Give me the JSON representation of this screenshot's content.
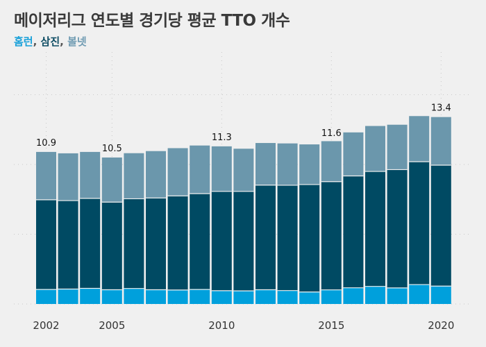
{
  "title": "메이저리그 연도별 경기당 평균 TTO 개수",
  "subtitle": {
    "parts": [
      {
        "text": "홈런",
        "color": "#159fd8"
      },
      {
        "text": ", ",
        "color": "#555555"
      },
      {
        "text": "삼진",
        "color": "#0d4c63"
      },
      {
        "text": ", ",
        "color": "#555555"
      },
      {
        "text": "볼넷",
        "color": "#6f9bb2"
      }
    ]
  },
  "chart_data": {
    "type": "bar",
    "stacked": true,
    "categories": [
      2002,
      2003,
      2004,
      2005,
      2006,
      2007,
      2008,
      2009,
      2010,
      2011,
      2012,
      2013,
      2014,
      2015,
      2016,
      2017,
      2018,
      2019,
      2020
    ],
    "series": [
      {
        "name": "홈런",
        "color": "#00a0dc",
        "values": [
          1.04,
          1.07,
          1.12,
          1.02,
          1.11,
          1.02,
          1.0,
          1.04,
          0.95,
          0.94,
          1.02,
          0.96,
          0.86,
          1.01,
          1.16,
          1.26,
          1.15,
          1.39,
          1.28
        ]
      },
      {
        "name": "삼진",
        "color": "#004a63",
        "values": [
          6.43,
          6.34,
          6.45,
          6.28,
          6.43,
          6.58,
          6.75,
          6.87,
          7.12,
          7.13,
          7.5,
          7.55,
          7.7,
          7.76,
          8.02,
          8.24,
          8.48,
          8.81,
          8.67
        ]
      },
      {
        "name": "볼넷",
        "color": "#6b97ac",
        "values": [
          3.43,
          3.39,
          3.33,
          3.2,
          3.27,
          3.36,
          3.42,
          3.45,
          3.23,
          3.06,
          3.02,
          3.0,
          2.88,
          2.9,
          3.12,
          3.26,
          3.22,
          3.27,
          3.45
        ]
      }
    ],
    "totals": [
      10.9,
      10.8,
      10.9,
      10.5,
      10.81,
      10.96,
      11.17,
      11.36,
      11.3,
      11.13,
      11.54,
      11.51,
      11.44,
      11.6,
      12.3,
      12.76,
      12.85,
      13.47,
      13.4
    ],
    "value_labels": [
      {
        "year": 2002,
        "text": "10.9"
      },
      {
        "year": 2005,
        "text": "10.5"
      },
      {
        "year": 2010,
        "text": "11.3"
      },
      {
        "year": 2015,
        "text": "11.6"
      },
      {
        "year": 2020,
        "text": "13.4"
      }
    ],
    "x_ticks": [
      {
        "value": 2002,
        "label": "2002"
      },
      {
        "value": 2005,
        "label": "2005"
      },
      {
        "value": 2010,
        "label": "2010"
      },
      {
        "value": 2015,
        "label": "2015"
      },
      {
        "value": 2020,
        "label": "2020"
      }
    ],
    "ylim": [
      0,
      15
    ],
    "y_gridlines": [
      0,
      5,
      10,
      15
    ],
    "grid": true,
    "legend": "subtitle"
  }
}
